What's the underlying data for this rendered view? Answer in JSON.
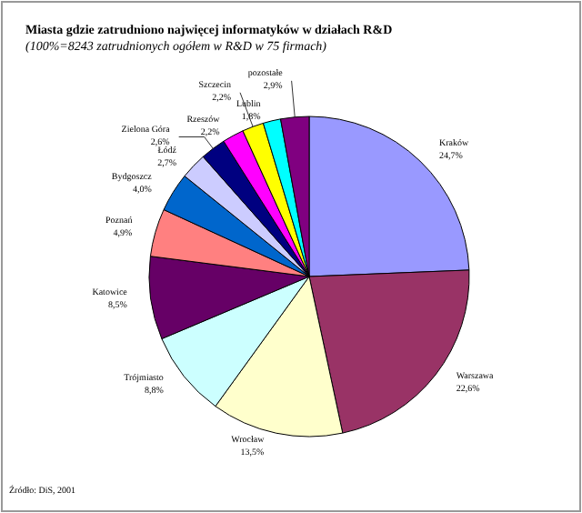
{
  "chart_data": {
    "type": "pie",
    "title": "Miasta gdzie zatrudniono najwięcej informatyków w działach R&D",
    "subtitle": "(100%=8243 zatrudnionych ogółem w R&D w 75 firmach)",
    "categories": [
      "Kraków",
      "Warszawa",
      "Wrocław",
      "Trójmiasto",
      "Katowice",
      "Poznań",
      "Bydgoszcz",
      "Łódź",
      "Zielona Góra",
      "Rzeszów",
      "Szczecin",
      "Lublin",
      "pozostałe"
    ],
    "values": [
      24.7,
      22.6,
      13.5,
      8.8,
      8.5,
      4.9,
      4.0,
      2.7,
      2.6,
      2.2,
      2.2,
      1.8,
      2.9
    ],
    "value_labels": [
      "24,7%",
      "22,6%",
      "13,5%",
      "8,8%",
      "8,5%",
      "4,9%",
      "4,0%",
      "2,7%",
      "2,6%",
      "2,2%",
      "2,2%",
      "1,8%",
      "2,9%"
    ],
    "colors": [
      "#9999ff",
      "#993366",
      "#ffffcc",
      "#ccffff",
      "#660066",
      "#ff8080",
      "#0066cc",
      "#ccccff",
      "#000080",
      "#ff00ff",
      "#ffff00",
      "#00ffff",
      "#800080"
    ],
    "legend": false,
    "annotations": [
      "Źródło: DiS, 2001"
    ]
  }
}
